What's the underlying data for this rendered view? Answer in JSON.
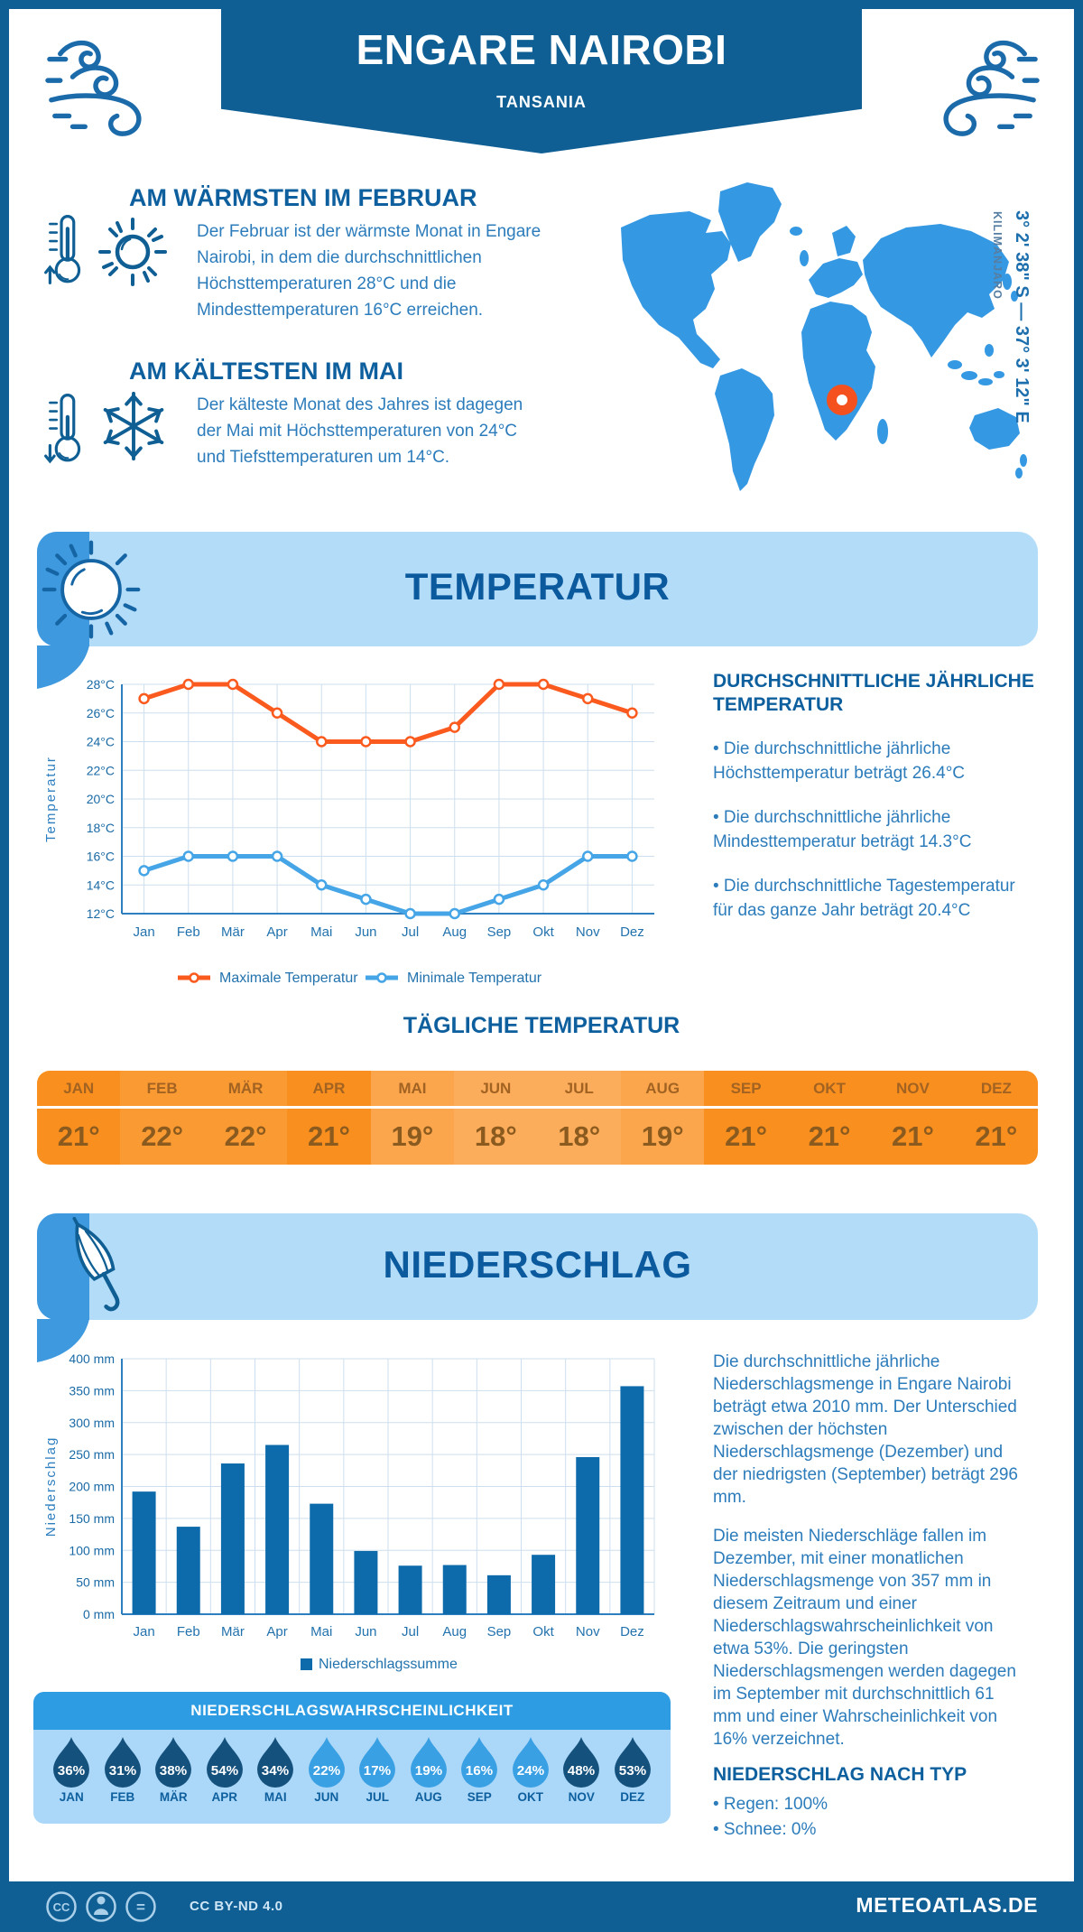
{
  "header": {
    "title": "ENGARE NAIROBI",
    "subtitle": "TANSANIA"
  },
  "location": {
    "coordinates": "3° 2' 38\" S — 37° 3' 12\" E",
    "label": "KILIMANJARO"
  },
  "warmest": {
    "heading": "AM WÄRMSTEN IM FEBRUAR",
    "lines": [
      "Der Februar ist der wärmste Monat in Engare",
      "Nairobi, in dem die durchschnittlichen",
      "Höchsttemperaturen 28°C und die",
      "Mindesttemperaturen 16°C erreichen."
    ]
  },
  "coldest": {
    "heading": "AM KÄLTESTEN IM MAI",
    "lines": [
      "Der kälteste Monat des Jahres ist dagegen",
      "der Mai mit Höchsttemperaturen von 24°C",
      "und Tiefsttemperaturen um 14°C."
    ]
  },
  "temperature": {
    "banner": "TEMPERATUR",
    "panel_heading": [
      "DURCHSCHNITTLICHE JÄHRLICHE",
      "TEMPERATUR"
    ],
    "bullets": [
      [
        "• Die durchschnittliche jährliche",
        "Höchsttemperatur beträgt 26.4°C"
      ],
      [
        "• Die durchschnittliche jährliche",
        "Mindesttemperatur beträgt 14.3°C"
      ],
      [
        "• Die durchschnittliche Tagestemperatur",
        "für das ganze Jahr beträgt 20.4°C"
      ]
    ]
  },
  "precipitation": {
    "banner": "NIEDERSCHLAG",
    "paragraph1": [
      "Die durchschnittliche jährliche",
      "Niederschlagsmenge in Engare Nairobi",
      "beträgt etwa 2010 mm. Der Unterschied",
      "zwischen der höchsten",
      "Niederschlagsmenge (Dezember) und",
      "der niedrigsten (September) beträgt 296",
      "mm."
    ],
    "paragraph2": [
      "Die meisten Niederschläge fallen im",
      "Dezember, mit einer monatlichen",
      "Niederschlagsmenge von 357 mm in",
      "diesem Zeitraum und einer",
      "Niederschlagswahrscheinlichkeit von",
      "etwa 53%. Die geringsten",
      "Niederschlagsmengen werden dagegen",
      "im September mit durchschnittlich 61",
      "mm und einer Wahrscheinlichkeit von",
      "16% verzeichnet."
    ],
    "type_heading": "NIEDERSCHLAG NACH TYP",
    "type_bullets": [
      "• Regen: 100%",
      "• Schnee: 0%"
    ]
  },
  "footer": {
    "license": "CC BY-ND 4.0",
    "site": "METEOATLAS.DE",
    "badge_cc": "CC",
    "badge_nd": "="
  },
  "chart_data": [
    {
      "type": "line",
      "categories": [
        "Jan",
        "Feb",
        "Mär",
        "Apr",
        "Mai",
        "Jun",
        "Jul",
        "Aug",
        "Sep",
        "Okt",
        "Nov",
        "Dez"
      ],
      "ylabel": "Temperatur",
      "ylim": [
        12,
        28
      ],
      "ytick_step": 2,
      "ytick_suffix": "°C",
      "grid": true,
      "legend_position": "bottom",
      "series": [
        {
          "name": "Maximale Temperatur",
          "color": "#fb5a1f",
          "values": [
            27,
            28,
            28,
            26,
            24,
            24,
            24,
            25,
            28,
            28,
            27,
            26
          ]
        },
        {
          "name": "Minimale Temperatur",
          "color": "#45a5e6",
          "values": [
            15,
            16,
            16,
            16,
            14,
            13,
            12,
            12,
            13,
            14,
            16,
            16
          ]
        }
      ]
    },
    {
      "type": "bar",
      "categories": [
        "Jan",
        "Feb",
        "Mär",
        "Apr",
        "Mai",
        "Jun",
        "Jul",
        "Aug",
        "Sep",
        "Okt",
        "Nov",
        "Dez"
      ],
      "ylabel": "Niederschlag",
      "ylim": [
        0,
        400
      ],
      "ytick_step": 50,
      "ytick_suffix": " mm",
      "grid": true,
      "legend_position": "bottom",
      "series": [
        {
          "name": "Niederschlagssumme",
          "color": "#0e6bab",
          "values": [
            192,
            137,
            236,
            265,
            173,
            99,
            76,
            77,
            61,
            93,
            246,
            357
          ]
        }
      ]
    },
    {
      "type": "table",
      "title": "TÄGLICHE TEMPERATUR",
      "categories": [
        "JAN",
        "FEB",
        "MÄR",
        "APR",
        "MAI",
        "JUN",
        "JUL",
        "AUG",
        "SEP",
        "OKT",
        "NOV",
        "DEZ"
      ],
      "values": [
        "21°",
        "22°",
        "22°",
        "21°",
        "19°",
        "18°",
        "18°",
        "19°",
        "21°",
        "21°",
        "21°",
        "21°"
      ],
      "cell_colors": [
        "#f98f1e",
        "#fa9a33",
        "#fa9a33",
        "#f98f1e",
        "#fba64d",
        "#fcad5b",
        "#fcad5b",
        "#fba64d",
        "#f98f1e",
        "#f98f1e",
        "#f98f1e",
        "#f98f1e"
      ],
      "label_color": "#a26322",
      "value_color": "#8a5a1e"
    },
    {
      "type": "pictogram",
      "title": "NIEDERSCHLAGSWAHRSCHEINLICHKEIT",
      "categories": [
        "JAN",
        "FEB",
        "MÄR",
        "APR",
        "MAI",
        "JUN",
        "JUL",
        "AUG",
        "SEP",
        "OKT",
        "NOV",
        "DEZ"
      ],
      "values": [
        "36%",
        "31%",
        "38%",
        "54%",
        "34%",
        "22%",
        "17%",
        "19%",
        "16%",
        "24%",
        "48%",
        "53%"
      ],
      "shades": [
        "dark",
        "dark",
        "dark",
        "dark",
        "dark",
        "light",
        "light",
        "light",
        "light",
        "light",
        "dark",
        "dark"
      ],
      "palette": {
        "dark": "#15517d",
        "light": "#3aa0e4"
      }
    }
  ]
}
